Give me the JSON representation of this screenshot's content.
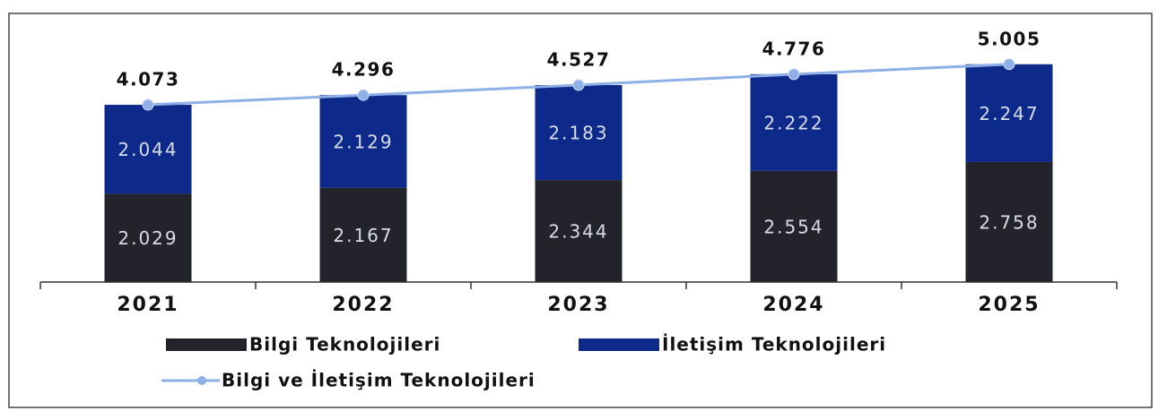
{
  "chart_data": {
    "type": "bar",
    "stacked": true,
    "categories": [
      "2021",
      "2022",
      "2023",
      "2024",
      "2025"
    ],
    "series": [
      {
        "name": "Bilgi Teknolojileri",
        "color": "#23232b",
        "values": [
          2.029,
          2.167,
          2.344,
          2.554,
          2.758
        ]
      },
      {
        "name": "İletişim Teknolojileri",
        "color": "#0d2a8a",
        "values": [
          2.044,
          2.129,
          2.183,
          2.222,
          2.247
        ]
      },
      {
        "name": "Bilgi ve İletişim Teknolojileri",
        "type": "line",
        "color": "#8fb0e6",
        "values": [
          4.073,
          4.296,
          4.527,
          4.776,
          5.005
        ]
      }
    ],
    "ylim": [
      0,
      6
    ]
  }
}
